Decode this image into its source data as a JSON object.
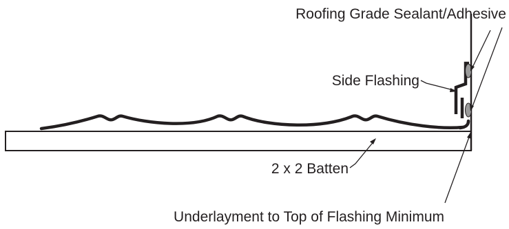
{
  "labels": {
    "sealant": "Roofing Grade Sealant/Adhesive",
    "side_flashing": "Side Flashing",
    "batten": "2 x 2 Batten",
    "underlayment": "Underlayment to Top of Flashing Minimum"
  },
  "colors": {
    "ink": "#231f20",
    "sealant_fill": "#9a9a9a",
    "background": "#ffffff"
  }
}
